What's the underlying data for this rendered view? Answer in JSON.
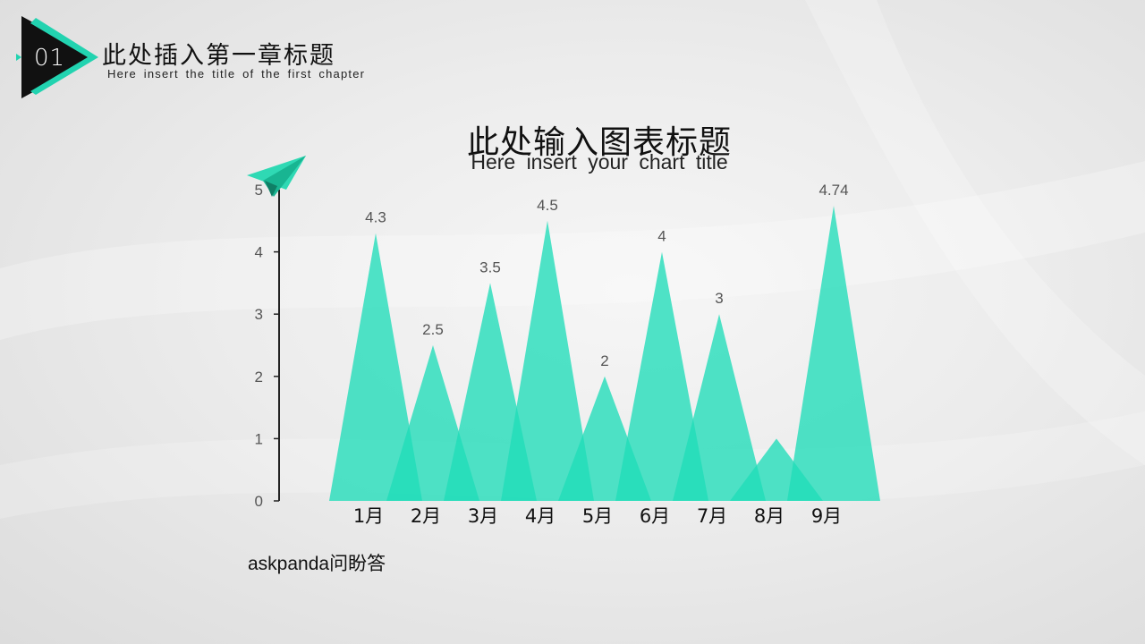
{
  "chapter": {
    "number": "01",
    "title": "此处插入第一章标题",
    "subtitle": "Here insert the title of the first chapter"
  },
  "chart_data": {
    "type": "area",
    "title": "此处输入图表标题",
    "subtitle": "Here insert your chart title",
    "categories": [
      "1月",
      "2月",
      "3月",
      "4月",
      "5月",
      "6月",
      "7月",
      "8月",
      "9月"
    ],
    "values": [
      4.3,
      2.5,
      3.5,
      4.5,
      2,
      4,
      3,
      1,
      4.74
    ],
    "data_labels": [
      "4.3",
      "2.5",
      "3.5",
      "4.5",
      "2",
      "4",
      "3",
      "",
      "4.74"
    ],
    "ylim": [
      0,
      5
    ],
    "yticks": [
      0,
      1,
      2,
      3,
      4,
      5
    ],
    "grid": false,
    "legend": "none",
    "colors": {
      "fill": "#1fdcb9",
      "badge_accent": "#22d3b0",
      "badge_dark": "#111111"
    }
  },
  "watermark": "askpanda问盼答"
}
